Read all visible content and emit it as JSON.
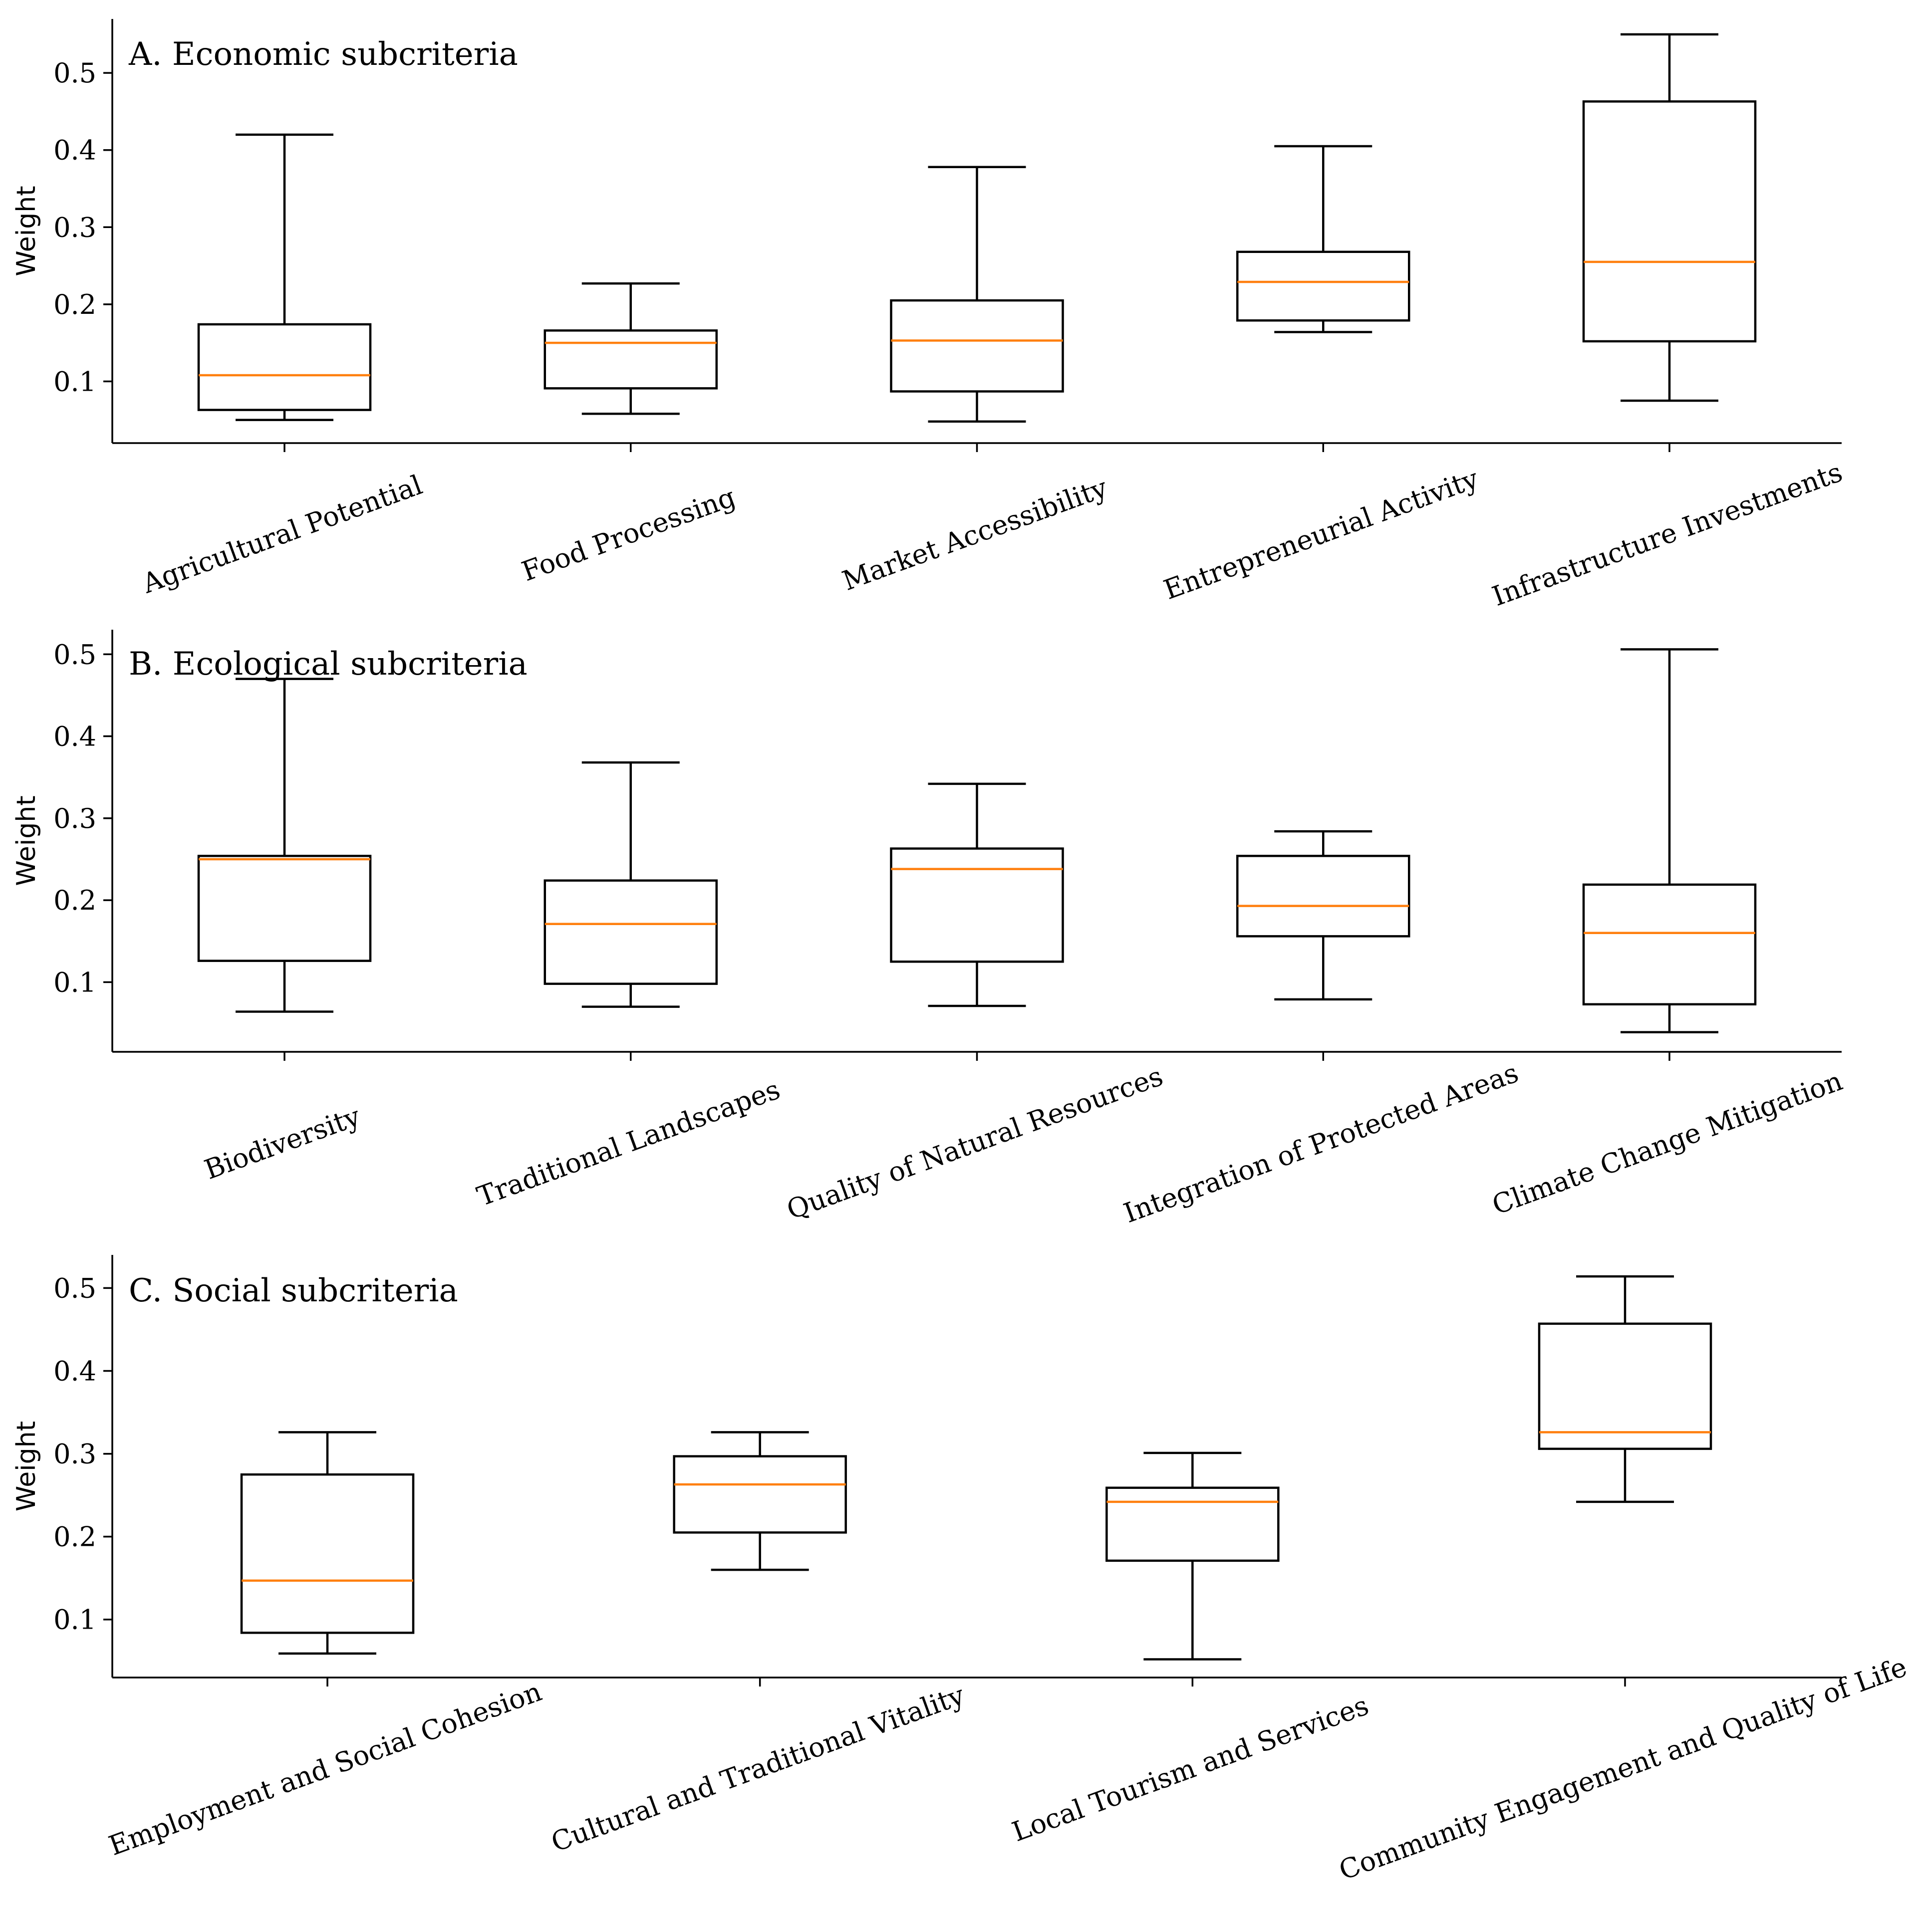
{
  "colors": {
    "median": "#ff7f0e",
    "box": "#000000"
  },
  "chart_data": [
    {
      "type": "box",
      "title": "A. Economic subcriteria",
      "ylabel": "Weight",
      "ylim": [
        0.02,
        0.57
      ],
      "yticks": [
        "0.1",
        "0.2",
        "0.3",
        "0.4",
        "0.5"
      ],
      "ytick_values": [
        0.1,
        0.2,
        0.3,
        0.4,
        0.5
      ],
      "categories": [
        "Agricultural Potential",
        "Food Processing",
        "Market Accessibility",
        "Entrepreneurial Activity",
        "Infrastructure Investments"
      ],
      "boxes": [
        {
          "min": 0.05,
          "q1": 0.063,
          "median": 0.108,
          "q3": 0.174,
          "max": 0.42
        },
        {
          "min": 0.058,
          "q1": 0.091,
          "median": 0.15,
          "q3": 0.166,
          "max": 0.227
        },
        {
          "min": 0.048,
          "q1": 0.087,
          "median": 0.153,
          "q3": 0.205,
          "max": 0.378
        },
        {
          "min": 0.164,
          "q1": 0.179,
          "median": 0.229,
          "q3": 0.268,
          "max": 0.405
        },
        {
          "min": 0.075,
          "q1": 0.152,
          "median": 0.255,
          "q3": 0.463,
          "max": 0.55
        }
      ]
    },
    {
      "type": "box",
      "title": "B. Ecological subcriteria",
      "ylabel": "Weight",
      "ylim": [
        0.015,
        0.53
      ],
      "yticks": [
        "0.1",
        "0.2",
        "0.3",
        "0.4",
        "0.5"
      ],
      "ytick_values": [
        0.1,
        0.2,
        0.3,
        0.4,
        0.5
      ],
      "categories": [
        "Biodiversity",
        "Traditional Landscapes",
        "Quality of Natural Resources",
        "Integration of Protected Areas",
        "Climate Change Mitigation"
      ],
      "boxes": [
        {
          "min": 0.064,
          "q1": 0.126,
          "median": 0.25,
          "q3": 0.254,
          "max": 0.47
        },
        {
          "min": 0.07,
          "q1": 0.098,
          "median": 0.171,
          "q3": 0.224,
          "max": 0.368
        },
        {
          "min": 0.071,
          "q1": 0.125,
          "median": 0.238,
          "q3": 0.263,
          "max": 0.342
        },
        {
          "min": 0.079,
          "q1": 0.156,
          "median": 0.193,
          "q3": 0.254,
          "max": 0.284
        },
        {
          "min": 0.039,
          "q1": 0.073,
          "median": 0.16,
          "q3": 0.219,
          "max": 0.506
        }
      ]
    },
    {
      "type": "box",
      "title": "C. Social subcriteria",
      "ylabel": "Weight",
      "ylim": [
        0.03,
        0.54
      ],
      "yticks": [
        "0.1",
        "0.2",
        "0.3",
        "0.4",
        "0.5"
      ],
      "ytick_values": [
        0.1,
        0.2,
        0.3,
        0.4,
        0.5
      ],
      "categories": [
        "Employment and Social Cohesion",
        "Cultural and Traditional Vitality",
        "Local Tourism and Services",
        "Community Engagement and Quality of Life"
      ],
      "boxes": [
        {
          "min": 0.059,
          "q1": 0.084,
          "median": 0.147,
          "q3": 0.275,
          "max": 0.326
        },
        {
          "min": 0.16,
          "q1": 0.205,
          "median": 0.263,
          "q3": 0.297,
          "max": 0.326
        },
        {
          "min": 0.052,
          "q1": 0.171,
          "median": 0.242,
          "q3": 0.259,
          "max": 0.301
        },
        {
          "min": 0.242,
          "q1": 0.306,
          "median": 0.326,
          "q3": 0.457,
          "max": 0.514
        }
      ]
    }
  ]
}
